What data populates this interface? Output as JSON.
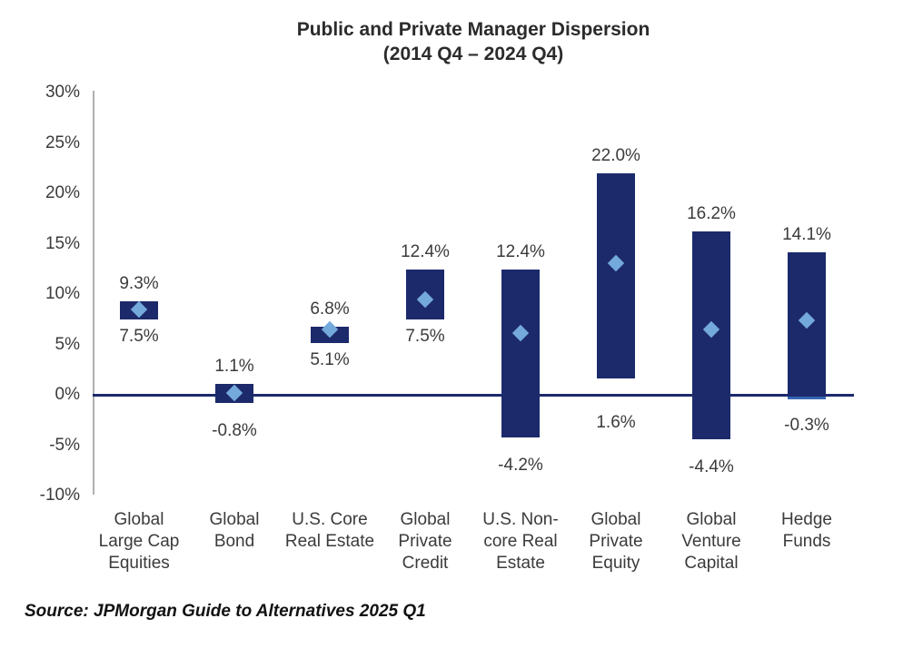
{
  "title": {
    "line1": "Public and Private Manager Dispersion",
    "line2": "(2014 Q4 – 2024 Q4)"
  },
  "source": "Source: JPMorgan Guide to Alternatives 2025 Q1",
  "colors": {
    "bar": "#1c2a6b",
    "marker": "#74a9db",
    "zero_line": "#1c2a6b",
    "axis_line": "#b0b0b0",
    "text": "#3b3b3b",
    "title_text": "#2b2b2b",
    "accent_bottom": "#3565b2"
  },
  "chart_data": {
    "type": "bar",
    "subtype": "floating-range-bars-with-median-diamond-markers",
    "title": "Public and Private Manager Dispersion (2014 Q4 – 2024 Q4)",
    "xlabel": "",
    "ylabel": "",
    "ylim": [
      -10,
      30
    ],
    "ytick_step": 5,
    "ytick_labels": [
      "30%",
      "25%",
      "20%",
      "15%",
      "10%",
      "5%",
      "0%",
      "-5%",
      "-10%"
    ],
    "grid": false,
    "legend": "none",
    "categories": [
      "Global\nLarge Cap\nEquities",
      "Global\nBond",
      "U.S. Core\nReal Estate",
      "Global\nPrivate\nCredit",
      "U.S. Non-\ncore Real\nEstate",
      "Global\nPrivate\nEquity",
      "Global\nVenture\nCapital",
      "Hedge\nFunds"
    ],
    "series": [
      {
        "name": "Range high",
        "values": [
          9.3,
          1.1,
          6.8,
          12.4,
          12.4,
          22.0,
          16.2,
          14.1
        ]
      },
      {
        "name": "Range low",
        "values": [
          7.5,
          -0.8,
          5.1,
          7.5,
          -4.2,
          1.6,
          -4.4,
          -0.3
        ]
      },
      {
        "name": "Median (diamond marker)",
        "values": [
          8.5,
          0.2,
          6.5,
          9.5,
          6.1,
          13.1,
          6.5,
          7.4
        ]
      }
    ],
    "labels_high": [
      "9.3%",
      "1.1%",
      "6.8%",
      "12.4%",
      "12.4%",
      "22.0%",
      "16.2%",
      "14.1%"
    ],
    "labels_low": [
      "7.5%",
      "-0.8%",
      "5.1%",
      "7.5%",
      "-4.2%",
      "1.6%",
      "-4.4%",
      "-0.3%"
    ],
    "accent_bottom_index": 7
  }
}
